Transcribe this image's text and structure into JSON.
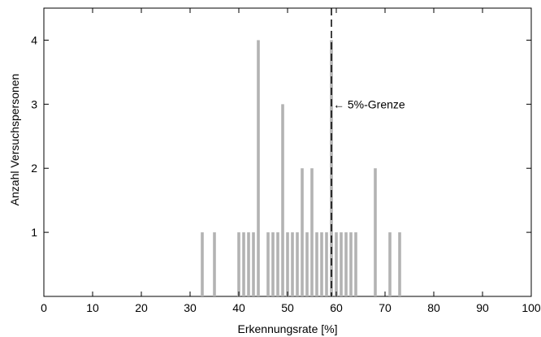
{
  "chart_data": {
    "type": "bar",
    "xlabel": "Erkennungsrate [%]",
    "ylabel": "Anzahl Versuchspersonen",
    "xlim": [
      0,
      100
    ],
    "ylim": [
      0,
      4.5
    ],
    "xticks": [
      "0",
      "10",
      "20",
      "30",
      "40",
      "50",
      "60",
      "70",
      "80",
      "90",
      "100"
    ],
    "yticks": [
      "1",
      "2",
      "3",
      "4"
    ],
    "x": [
      32.5,
      35,
      40,
      41,
      42,
      43,
      44,
      46,
      47,
      48,
      49,
      50,
      51,
      52,
      53,
      54,
      55,
      56,
      57,
      58,
      59,
      60,
      61,
      62,
      63,
      64,
      68,
      71,
      73
    ],
    "values": [
      1,
      1,
      1,
      1,
      1,
      1,
      4,
      1,
      1,
      1,
      3,
      1,
      1,
      1,
      2,
      1,
      2,
      1,
      1,
      1,
      4,
      1,
      1,
      1,
      1,
      1,
      2,
      1,
      1
    ],
    "bar_color": "#b3b3b3",
    "threshold": {
      "x": 59,
      "label": "5%-Grenze",
      "arrow": "←"
    },
    "grid": false,
    "legend": "none"
  }
}
